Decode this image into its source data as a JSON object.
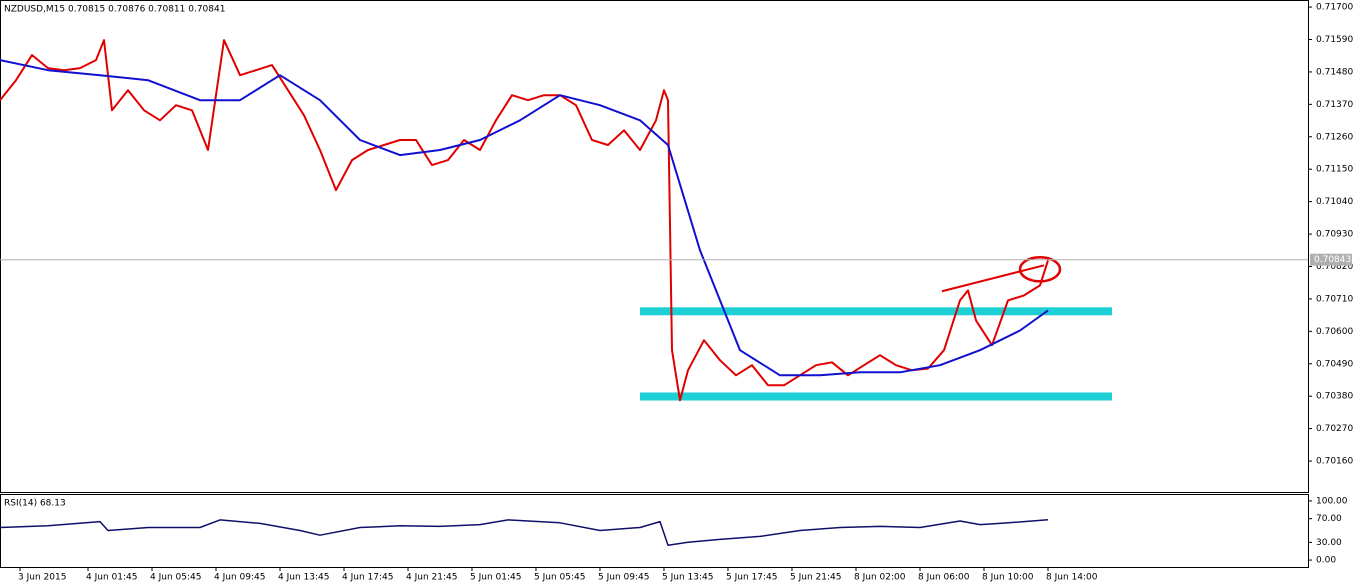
{
  "chart_data": [
    {
      "type": "line",
      "title": "NZDUSD,M15  0.70815 0.70876 0.70811 0.70841",
      "xlim": [
        0,
        327
      ],
      "xticks": [
        {
          "value": 5,
          "label": "3 Jun 2015"
        },
        {
          "value": 22,
          "label": "4 Jun 01:45"
        },
        {
          "value": 38,
          "label": "4 Jun 05:45"
        },
        {
          "value": 54,
          "label": "4 Jun 09:45"
        },
        {
          "value": 70,
          "label": "4 Jun 13:45"
        },
        {
          "value": 86,
          "label": "4 Jun 17:45"
        },
        {
          "value": 102,
          "label": "4 Jun 21:45"
        },
        {
          "value": 118,
          "label": "5 Jun 01:45"
        },
        {
          "value": 134,
          "label": "5 Jun 05:45"
        },
        {
          "value": 150,
          "label": "5 Jun 09:45"
        },
        {
          "value": 166,
          "label": "5 Jun 13:45"
        },
        {
          "value": 182,
          "label": "5 Jun 17:45"
        },
        {
          "value": 198,
          "label": "5 Jun 21:45"
        },
        {
          "value": 214,
          "label": "8 Jun 02:00"
        },
        {
          "value": 230,
          "label": "8 Jun 06:00"
        },
        {
          "value": 246,
          "label": "8 Jun 10:00"
        },
        {
          "value": 262,
          "label": "8 Jun 14:00"
        }
      ],
      "ylim": [
        0.70055,
        0.71724
      ],
      "yticks": [
        {
          "value": 0.717,
          "label": "0.71700"
        },
        {
          "value": 0.7159,
          "label": "0.71590"
        },
        {
          "value": 0.7148,
          "label": "0.71480"
        },
        {
          "value": 0.7137,
          "label": "0.71370"
        },
        {
          "value": 0.7126,
          "label": "0.71260"
        },
        {
          "value": 0.7115,
          "label": "0.71150"
        },
        {
          "value": 0.7104,
          "label": "0.71040"
        },
        {
          "value": 0.7093,
          "label": "0.70930"
        },
        {
          "value": 0.7082,
          "label": "0.70820"
        },
        {
          "value": 0.7071,
          "label": "0.70710"
        },
        {
          "value": 0.706,
          "label": "0.70600"
        },
        {
          "value": 0.7049,
          "label": "0.70490"
        },
        {
          "value": 0.7038,
          "label": "0.70380"
        },
        {
          "value": 0.7027,
          "label": "0.70270"
        },
        {
          "value": 0.7016,
          "label": "0.70160"
        }
      ],
      "series": [
        {
          "color": "#e00000",
          "x": [
            0,
            4,
            8,
            12,
            16,
            20,
            24,
            26,
            28,
            32,
            36,
            40,
            44,
            48,
            52,
            56,
            60,
            64,
            68,
            72,
            76,
            80,
            84,
            88,
            92,
            96,
            100,
            104,
            108,
            112,
            116,
            120,
            124,
            128,
            132,
            136,
            140,
            144,
            148,
            152,
            156,
            160,
            164,
            166,
            167,
            168,
            170,
            172,
            176,
            180,
            184,
            188,
            192,
            196,
            200,
            204,
            208,
            212,
            216,
            220,
            224,
            228,
            232,
            236,
            240,
            242,
            244,
            248,
            252,
            256,
            260,
            262
          ],
          "values": [
            0.71384,
            0.71452,
            0.71537,
            0.71493,
            0.71486,
            0.71493,
            0.7152,
            0.71588,
            0.7135,
            0.71418,
            0.7135,
            0.71316,
            0.71367,
            0.7135,
            0.71215,
            0.71588,
            0.71469,
            0.71486,
            0.71503,
            0.71418,
            0.71333,
            0.71215,
            0.71079,
            0.71181,
            0.71215,
            0.71232,
            0.71249,
            0.71249,
            0.71164,
            0.71181,
            0.71249,
            0.71215,
            0.71316,
            0.71401,
            0.71384,
            0.71401,
            0.71401,
            0.71367,
            0.71249,
            0.71232,
            0.71282,
            0.71215,
            0.71316,
            0.71418,
            0.71384,
            0.70536,
            0.70366,
            0.70468,
            0.7057,
            0.70502,
            0.70451,
            0.70485,
            0.70417,
            0.70417,
            0.70451,
            0.70485,
            0.70495,
            0.70451,
            0.70485,
            0.70519,
            0.70485,
            0.70468,
            0.70474,
            0.70536,
            0.70705,
            0.70739,
            0.70637,
            0.70553,
            0.70705,
            0.70722,
            0.70756,
            0.70841
          ]
        },
        {
          "color": "#1010d0",
          "x": [
            0,
            12,
            25,
            37,
            50,
            60,
            70,
            80,
            90,
            100,
            110,
            120,
            130,
            140,
            150,
            160,
            167,
            175,
            185,
            195,
            205,
            215,
            225,
            235,
            245,
            255,
            262
          ],
          "values": [
            0.7152,
            0.71486,
            0.71469,
            0.71452,
            0.71384,
            0.71384,
            0.71469,
            0.71384,
            0.71249,
            0.71198,
            0.71215,
            0.71249,
            0.71316,
            0.71401,
            0.71367,
            0.71316,
            0.71232,
            0.70875,
            0.70536,
            0.70451,
            0.70451,
            0.70461,
            0.70461,
            0.70485,
            0.70536,
            0.70603,
            0.70671
          ]
        }
      ],
      "levels": [
        {
          "value": 0.70668,
          "from": 160,
          "to": 278,
          "color": "#1ecfd6"
        },
        {
          "value": 0.70379,
          "from": 160,
          "to": 278,
          "color": "#1ecfd6"
        }
      ],
      "trendline": {
        "x": [
          235.5,
          261
        ],
        "values": [
          0.70736,
          0.70824
        ],
        "color": "#e00000"
      },
      "last_price": 0.70843
    },
    {
      "type": "line",
      "title": "RSI(14) 68.13",
      "xlim": [
        0,
        327
      ],
      "ylim": [
        -11.7,
        111.7
      ],
      "yticks": [
        {
          "value": 100,
          "label": "100.00"
        },
        {
          "value": 70,
          "label": "70.00"
        },
        {
          "value": 30,
          "label": "30.00"
        },
        {
          "value": 0,
          "label": "0.00"
        }
      ],
      "series": [
        {
          "color": "#10106a",
          "x": [
            0,
            12,
            25,
            27,
            37,
            50,
            55,
            65,
            75,
            80,
            90,
            100,
            110,
            120,
            127,
            140,
            150,
            160,
            165,
            167,
            172,
            180,
            190,
            200,
            210,
            220,
            230,
            240,
            245,
            250,
            262
          ],
          "values": [
            55,
            58,
            65,
            50,
            55,
            55,
            68,
            62,
            50,
            42,
            55,
            58,
            57,
            60,
            68,
            63,
            50,
            55,
            65,
            25,
            30,
            35,
            40,
            50,
            55,
            57,
            55,
            66,
            60,
            62,
            68.13
          ]
        }
      ]
    }
  ]
}
